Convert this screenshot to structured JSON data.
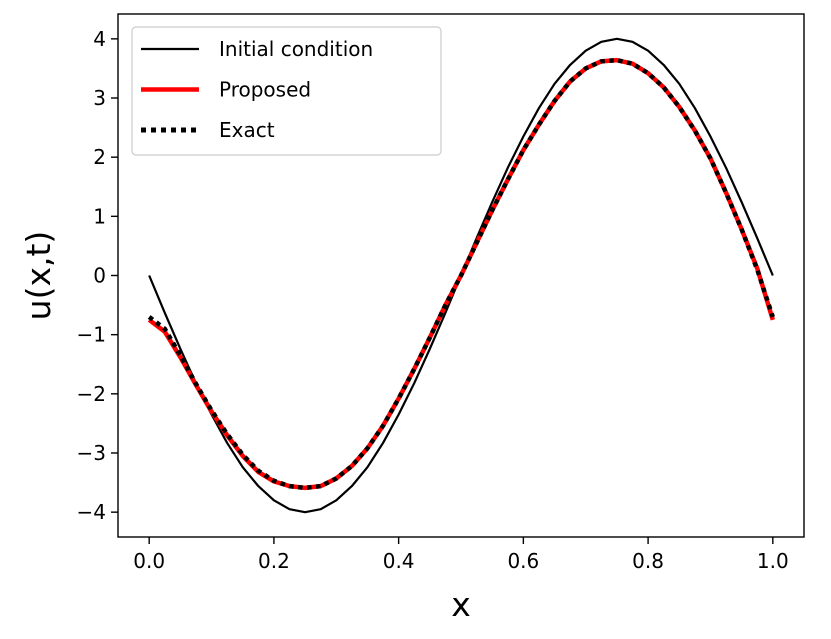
{
  "chart_data": {
    "type": "line",
    "xlabel": "x",
    "ylabel": "u(x,t)",
    "xlim": [
      -0.05,
      1.05
    ],
    "ylim": [
      -4.42,
      4.42
    ],
    "xticks": [
      0.0,
      0.2,
      0.4,
      0.6,
      0.8,
      1.0
    ],
    "xtick_labels": [
      "0.0",
      "0.2",
      "0.4",
      "0.6",
      "0.8",
      "1.0"
    ],
    "yticks": [
      -4,
      -3,
      -2,
      -1,
      0,
      1,
      2,
      3,
      4
    ],
    "ytick_labels": [
      "−4",
      "−3",
      "−2",
      "−1",
      "0",
      "1",
      "2",
      "3",
      "4"
    ],
    "grid": false,
    "legend_position": "top-left",
    "series": [
      {
        "name": "Initial condition",
        "color": "#000000",
        "style": "solid",
        "x": [
          0.0,
          0.025,
          0.05,
          0.075,
          0.1,
          0.125,
          0.15,
          0.175,
          0.2,
          0.225,
          0.25,
          0.275,
          0.3,
          0.325,
          0.35,
          0.375,
          0.4,
          0.425,
          0.45,
          0.475,
          0.5,
          0.525,
          0.55,
          0.575,
          0.6,
          0.625,
          0.65,
          0.675,
          0.7,
          0.725,
          0.75,
          0.775,
          0.8,
          0.825,
          0.85,
          0.875,
          0.9,
          0.925,
          0.95,
          0.975,
          1.0
        ],
        "y": [
          0.0,
          -0.63,
          -1.24,
          -1.82,
          -2.35,
          -2.83,
          -3.24,
          -3.56,
          -3.8,
          -3.95,
          -4.0,
          -3.95,
          -3.8,
          -3.56,
          -3.24,
          -2.83,
          -2.35,
          -1.82,
          -1.24,
          -0.63,
          0.0,
          0.63,
          1.24,
          1.82,
          2.35,
          2.83,
          3.24,
          3.56,
          3.8,
          3.95,
          4.0,
          3.95,
          3.8,
          3.56,
          3.24,
          2.83,
          2.35,
          1.82,
          1.24,
          0.63,
          0.0
        ]
      },
      {
        "name": "Proposed",
        "color": "#ff0000",
        "style": "solid",
        "x": [
          0.0,
          0.025,
          0.05,
          0.075,
          0.1,
          0.125,
          0.15,
          0.175,
          0.2,
          0.225,
          0.25,
          0.275,
          0.3,
          0.325,
          0.35,
          0.375,
          0.4,
          0.425,
          0.45,
          0.475,
          0.5,
          0.525,
          0.55,
          0.575,
          0.6,
          0.625,
          0.65,
          0.675,
          0.7,
          0.725,
          0.75,
          0.775,
          0.8,
          0.825,
          0.85,
          0.875,
          0.9,
          0.925,
          0.95,
          0.975,
          1.0
        ],
        "y": [
          -0.75,
          -0.95,
          -1.38,
          -1.85,
          -2.3,
          -2.7,
          -3.05,
          -3.32,
          -3.48,
          -3.56,
          -3.59,
          -3.56,
          -3.43,
          -3.22,
          -2.92,
          -2.54,
          -2.08,
          -1.58,
          -1.05,
          -0.5,
          0.0,
          0.55,
          1.1,
          1.62,
          2.12,
          2.55,
          2.95,
          3.28,
          3.5,
          3.62,
          3.64,
          3.58,
          3.42,
          3.18,
          2.85,
          2.45,
          1.98,
          1.4,
          0.78,
          0.12,
          -0.75
        ]
      },
      {
        "name": "Exact",
        "color": "#000000",
        "style": "dotted",
        "x": [
          0.0,
          0.025,
          0.05,
          0.075,
          0.1,
          0.125,
          0.15,
          0.175,
          0.2,
          0.225,
          0.25,
          0.275,
          0.3,
          0.325,
          0.35,
          0.375,
          0.4,
          0.425,
          0.45,
          0.475,
          0.5,
          0.525,
          0.55,
          0.575,
          0.6,
          0.625,
          0.65,
          0.675,
          0.7,
          0.725,
          0.75,
          0.775,
          0.8,
          0.825,
          0.85,
          0.875,
          0.9,
          0.925,
          0.95,
          0.975,
          1.0
        ],
        "y": [
          -0.7,
          -0.9,
          -1.35,
          -1.83,
          -2.28,
          -2.68,
          -3.03,
          -3.3,
          -3.47,
          -3.56,
          -3.59,
          -3.56,
          -3.43,
          -3.22,
          -2.92,
          -2.54,
          -2.08,
          -1.58,
          -1.05,
          -0.5,
          0.0,
          0.55,
          1.1,
          1.62,
          2.12,
          2.55,
          2.95,
          3.28,
          3.5,
          3.62,
          3.64,
          3.58,
          3.42,
          3.18,
          2.85,
          2.45,
          1.98,
          1.4,
          0.78,
          0.1,
          -0.7
        ]
      }
    ]
  }
}
